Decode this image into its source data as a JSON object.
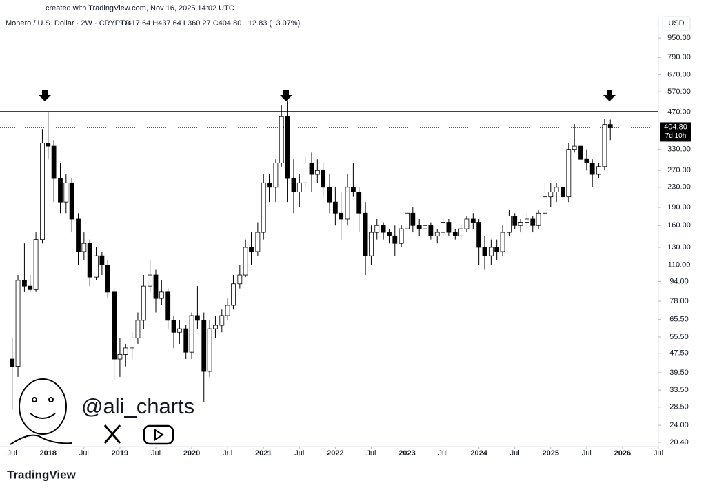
{
  "header": {
    "credit": "created with TradingView.com, Nov 16, 2025 14:02 UTC",
    "symbol": "Monero / U.S. Dollar · 2W · CRYPTO",
    "ohlc": "O417.64 H437.64 L360.27 C404.80 −12.83 (−3.07%)",
    "currency": "USD"
  },
  "watermark": {
    "handle": "@ali_charts",
    "brand": "TradingView"
  },
  "chart_data": {
    "type": "candlestick",
    "log_scale": true,
    "last_price_label": "404.80",
    "countdown": "7d 10h",
    "resistance": 472,
    "xlim": [
      2017.33,
      2026.5
    ],
    "ylim": [
      19.6,
      1180
    ],
    "xticks": [
      {
        "value": 2017.5,
        "label": "Jul"
      },
      2018,
      {
        "value": 2018.5,
        "label": "Jul"
      },
      2019,
      {
        "value": 2019.5,
        "label": "Jul"
      },
      2020,
      {
        "value": 2020.5,
        "label": "Jul"
      },
      2021,
      {
        "value": 2021.5,
        "label": "Jul"
      },
      2022,
      {
        "value": 2022.5,
        "label": "Jul"
      },
      2023,
      {
        "value": 2023.5,
        "label": "Jul"
      },
      2024,
      {
        "value": 2024.5,
        "label": "Jul"
      },
      2025,
      {
        "value": 2025.5,
        "label": "Jul"
      },
      2026,
      {
        "value": 2026.5,
        "label": "Jul"
      }
    ],
    "yticks": [
      {
        "value": 950,
        "label": "950.00"
      },
      {
        "value": 790,
        "label": "790.00"
      },
      {
        "value": 670,
        "label": "670.00"
      },
      {
        "value": 570,
        "label": "570.00"
      },
      {
        "value": 470,
        "label": "470.00"
      },
      {
        "value": 330,
        "label": "330.00"
      },
      {
        "value": 270,
        "label": "270.00"
      },
      {
        "value": 230,
        "label": "230.00"
      },
      {
        "value": 190,
        "label": "190.00"
      },
      {
        "value": 160,
        "label": "160.00"
      },
      {
        "value": 130,
        "label": "130.00"
      },
      {
        "value": 110,
        "label": "110.00"
      },
      {
        "value": 94,
        "label": "94.00"
      },
      {
        "value": 78,
        "label": "78.00"
      },
      {
        "value": 65.5,
        "label": "65.50"
      },
      {
        "value": 55.5,
        "label": "55.50"
      },
      {
        "value": 47.5,
        "label": "47.50"
      },
      {
        "value": 39.5,
        "label": "39.50"
      },
      {
        "value": 33.5,
        "label": "33.50"
      },
      {
        "value": 28.5,
        "label": "28.50"
      },
      {
        "value": 24,
        "label": "24.00"
      },
      {
        "value": 20.4,
        "label": "20.40"
      }
    ],
    "x": [
      2017.5,
      2017.58,
      2017.67,
      2017.75,
      2017.83,
      2017.92,
      2018.0,
      2018.08,
      2018.17,
      2018.25,
      2018.33,
      2018.42,
      2018.5,
      2018.58,
      2018.67,
      2018.75,
      2018.83,
      2018.92,
      2019.0,
      2019.08,
      2019.17,
      2019.25,
      2019.33,
      2019.42,
      2019.5,
      2019.58,
      2019.67,
      2019.75,
      2019.83,
      2019.92,
      2020.0,
      2020.08,
      2020.17,
      2020.25,
      2020.33,
      2020.42,
      2020.5,
      2020.58,
      2020.67,
      2020.75,
      2020.83,
      2020.92,
      2021.0,
      2021.08,
      2021.17,
      2021.25,
      2021.33,
      2021.42,
      2021.5,
      2021.58,
      2021.67,
      2021.75,
      2021.83,
      2021.92,
      2022.0,
      2022.08,
      2022.17,
      2022.25,
      2022.33,
      2022.42,
      2022.5,
      2022.58,
      2022.67,
      2022.75,
      2022.83,
      2022.92,
      2023.0,
      2023.08,
      2023.17,
      2023.25,
      2023.33,
      2023.42,
      2023.5,
      2023.58,
      2023.67,
      2023.75,
      2023.83,
      2023.92,
      2024.0,
      2024.08,
      2024.17,
      2024.25,
      2024.33,
      2024.42,
      2024.5,
      2024.58,
      2024.67,
      2024.75,
      2024.83,
      2024.92,
      2025.0,
      2025.08,
      2025.17,
      2025.25,
      2025.33,
      2025.42,
      2025.5,
      2025.58,
      2025.67,
      2025.75,
      2025.83
    ],
    "open": [
      45,
      42,
      95,
      90,
      87,
      140,
      350,
      340,
      250,
      200,
      240,
      170,
      125,
      135,
      98,
      120,
      110,
      85,
      45,
      47,
      50,
      55,
      65,
      90,
      100,
      80,
      85,
      65,
      58,
      60,
      48,
      68,
      65,
      40,
      60,
      62,
      68,
      75,
      92,
      100,
      130,
      125,
      150,
      240,
      230,
      290,
      450,
      250,
      220,
      240,
      290,
      260,
      270,
      230,
      200,
      180,
      170,
      230,
      220,
      180,
      120,
      150,
      160,
      150,
      145,
      135,
      155,
      180,
      160,
      155,
      160,
      145,
      150,
      165,
      150,
      145,
      155,
      170,
      165,
      130,
      120,
      130,
      125,
      150,
      175,
      160,
      165,
      170,
      160,
      180,
      210,
      220,
      230,
      210,
      330,
      340,
      300,
      290,
      260,
      280,
      417.64
    ],
    "high": [
      55,
      100,
      135,
      100,
      150,
      400,
      470,
      360,
      290,
      260,
      250,
      180,
      150,
      140,
      130,
      125,
      115,
      88,
      55,
      52,
      58,
      70,
      100,
      115,
      105,
      95,
      88,
      68,
      65,
      62,
      70,
      90,
      70,
      65,
      68,
      72,
      80,
      100,
      110,
      140,
      150,
      165,
      260,
      260,
      300,
      500,
      520,
      300,
      260,
      310,
      320,
      300,
      290,
      260,
      230,
      220,
      260,
      290,
      230,
      200,
      160,
      170,
      165,
      155,
      160,
      160,
      190,
      190,
      170,
      165,
      165,
      155,
      170,
      170,
      155,
      160,
      175,
      180,
      170,
      145,
      140,
      140,
      160,
      185,
      180,
      170,
      180,
      175,
      185,
      240,
      240,
      240,
      240,
      350,
      420,
      350,
      330,
      300,
      290,
      440,
      437.64
    ],
    "low": [
      28,
      38,
      85,
      85,
      85,
      135,
      300,
      200,
      180,
      180,
      150,
      110,
      115,
      90,
      95,
      100,
      80,
      37,
      38,
      42,
      45,
      52,
      60,
      85,
      70,
      75,
      60,
      50,
      52,
      45,
      45,
      60,
      30,
      38,
      55,
      58,
      65,
      72,
      88,
      98,
      110,
      120,
      140,
      200,
      200,
      280,
      200,
      180,
      190,
      230,
      220,
      240,
      210,
      180,
      160,
      140,
      160,
      210,
      150,
      100,
      110,
      140,
      140,
      135,
      120,
      130,
      150,
      150,
      145,
      145,
      140,
      135,
      145,
      145,
      140,
      140,
      150,
      155,
      110,
      105,
      110,
      115,
      120,
      145,
      155,
      150,
      155,
      150,
      155,
      175,
      190,
      200,
      190,
      200,
      320,
      280,
      270,
      230,
      250,
      270,
      360.27
    ],
    "close": [
      42,
      95,
      90,
      87,
      140,
      350,
      340,
      250,
      200,
      240,
      170,
      125,
      135,
      98,
      120,
      110,
      85,
      45,
      47,
      50,
      55,
      65,
      90,
      100,
      80,
      85,
      65,
      58,
      60,
      48,
      68,
      65,
      40,
      60,
      62,
      68,
      75,
      92,
      100,
      130,
      125,
      150,
      240,
      230,
      290,
      450,
      250,
      220,
      240,
      290,
      260,
      270,
      230,
      200,
      180,
      170,
      230,
      220,
      180,
      120,
      150,
      160,
      150,
      145,
      135,
      155,
      180,
      160,
      155,
      160,
      145,
      150,
      165,
      150,
      145,
      155,
      170,
      165,
      130,
      120,
      130,
      125,
      150,
      175,
      160,
      165,
      170,
      160,
      180,
      210,
      220,
      230,
      210,
      330,
      340,
      300,
      290,
      260,
      280,
      417.64,
      404.8
    ]
  }
}
